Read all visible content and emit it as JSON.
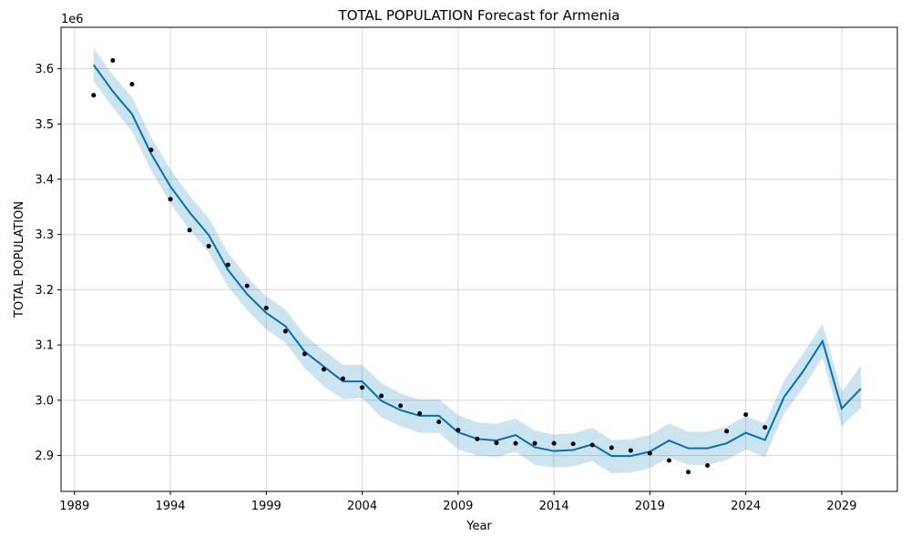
{
  "chart_data": {
    "type": "line",
    "title": "TOTAL POPULATION Forecast for Armenia",
    "xlabel": "Year",
    "ylabel": "TOTAL POPULATION",
    "y_scale_label": "1e6",
    "xlim": [
      1988.3,
      2031.9
    ],
    "ylim": [
      2.835,
      3.675
    ],
    "x_ticks": [
      1989,
      1994,
      1999,
      2004,
      2009,
      2014,
      2019,
      2024,
      2029
    ],
    "x_tick_labels": [
      "1989",
      "1994",
      "1999",
      "2004",
      "2009",
      "2014",
      "2019",
      "2024",
      "2029"
    ],
    "y_ticks": [
      2.9,
      3.0,
      3.1,
      3.2,
      3.3,
      3.4,
      3.5,
      3.6
    ],
    "y_tick_labels": [
      "2.9",
      "3.0",
      "3.1",
      "3.2",
      "3.3",
      "3.4",
      "3.5",
      "3.6"
    ],
    "grid": true,
    "colors": {
      "forecast": "#0072b2",
      "band": "#0072b2",
      "observed": "#000000",
      "grid": "#d9d9d9"
    },
    "observed": {
      "x": [
        1990,
        1991,
        1992,
        1993,
        1994,
        1995,
        1996,
        1997,
        1998,
        1999,
        2000,
        2001,
        2002,
        2003,
        2004,
        2005,
        2006,
        2007,
        2008,
        2009,
        2010,
        2011,
        2012,
        2013,
        2014,
        2015,
        2016,
        2017,
        2018,
        2019,
        2020,
        2021,
        2022,
        2023,
        2024,
        2025
      ],
      "y": [
        3.552,
        3.615,
        3.572,
        3.453,
        3.364,
        3.308,
        3.279,
        3.245,
        3.207,
        3.167,
        3.125,
        3.084,
        3.056,
        3.039,
        3.023,
        3.008,
        2.99,
        2.976,
        2.961,
        2.946,
        2.93,
        2.923,
        2.922,
        2.922,
        2.922,
        2.921,
        2.919,
        2.914,
        2.909,
        2.904,
        2.891,
        2.87,
        2.882,
        2.944,
        2.974,
        2.951
      ]
    },
    "forecast": {
      "x": [
        1990,
        1991,
        1992,
        1993,
        1994,
        1995,
        1996,
        1997,
        1998,
        1999,
        2000,
        2001,
        2002,
        2003,
        2004,
        2005,
        2006,
        2007,
        2008,
        2009,
        2010,
        2011,
        2012,
        2013,
        2014,
        2015,
        2016,
        2017,
        2018,
        2019,
        2020,
        2021,
        2022,
        2023,
        2024,
        2025,
        2026,
        2027,
        2028,
        2029,
        2030
      ],
      "yhat": [
        3.607,
        3.559,
        3.518,
        3.446,
        3.387,
        3.34,
        3.299,
        3.236,
        3.192,
        3.158,
        3.134,
        3.088,
        3.061,
        3.034,
        3.034,
        2.999,
        2.982,
        2.972,
        2.972,
        2.942,
        2.93,
        2.927,
        2.937,
        2.915,
        2.908,
        2.91,
        2.92,
        2.899,
        2.899,
        2.907,
        2.927,
        2.913,
        2.913,
        2.922,
        2.941,
        2.928,
        3.006,
        3.053,
        3.107,
        2.985,
        3.021
      ],
      "lower": [
        3.577,
        3.53,
        3.487,
        3.416,
        3.357,
        3.308,
        3.268,
        3.206,
        3.163,
        3.128,
        3.104,
        3.058,
        3.025,
        3.002,
        3.004,
        2.969,
        2.953,
        2.941,
        2.941,
        2.911,
        2.9,
        2.897,
        2.907,
        2.883,
        2.878,
        2.88,
        2.89,
        2.868,
        2.869,
        2.877,
        2.897,
        2.883,
        2.883,
        2.892,
        2.911,
        2.897,
        2.976,
        3.023,
        3.077,
        2.953,
        2.986
      ],
      "upper": [
        3.637,
        3.589,
        3.549,
        3.476,
        3.418,
        3.37,
        3.33,
        3.267,
        3.223,
        3.188,
        3.164,
        3.118,
        3.09,
        3.064,
        3.064,
        3.031,
        3.012,
        3.001,
        3.002,
        2.973,
        2.96,
        2.957,
        2.967,
        2.945,
        2.938,
        2.94,
        2.95,
        2.928,
        2.929,
        2.937,
        2.958,
        2.943,
        2.943,
        2.952,
        2.971,
        2.958,
        3.036,
        3.085,
        3.138,
        3.015,
        3.062
      ]
    }
  }
}
